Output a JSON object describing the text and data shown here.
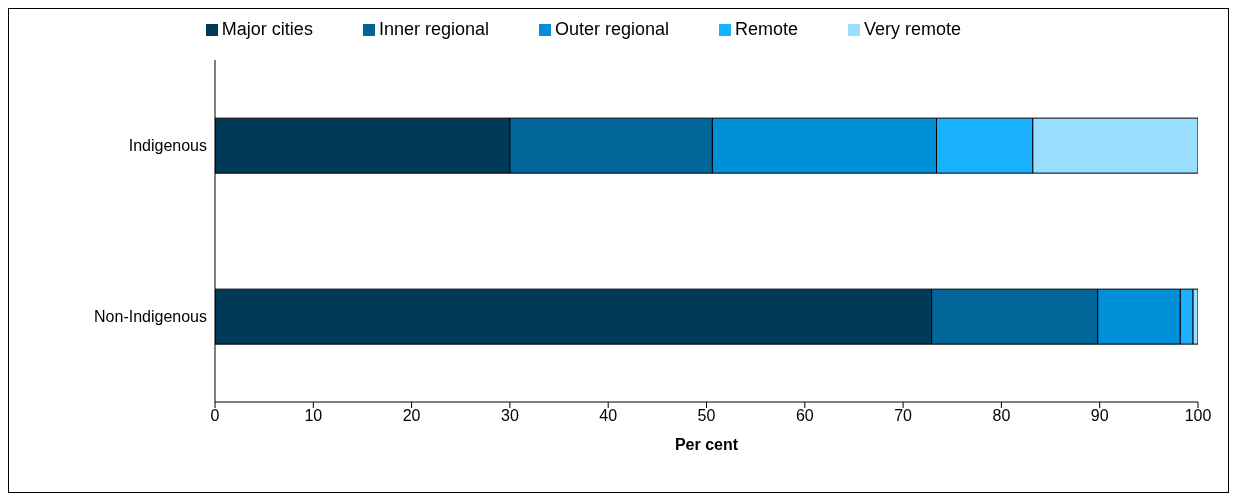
{
  "chart_data": {
    "type": "bar",
    "orientation": "horizontal",
    "stacked": true,
    "xlabel": "Per cent",
    "categories": [
      "Indigenous",
      "Non-Indigenous"
    ],
    "series": [
      {
        "name": "Major cities",
        "color": "#003a57",
        "values": [
          30.0,
          72.9
        ]
      },
      {
        "name": "Inner regional",
        "color": "#006699",
        "values": [
          20.6,
          16.9
        ]
      },
      {
        "name": "Outer regional",
        "color": "#008fd9",
        "values": [
          22.8,
          8.4
        ]
      },
      {
        "name": "Remote",
        "color": "#1ab2ff",
        "values": [
          9.8,
          1.3
        ]
      },
      {
        "name": "Very remote",
        "color": "#99ddff",
        "values": [
          16.8,
          0.5
        ]
      }
    ],
    "xlim": [
      0,
      100
    ],
    "xticks": [
      0,
      10,
      20,
      30,
      40,
      50,
      60,
      70,
      80,
      90,
      100
    ],
    "grid": false,
    "legend": "top"
  }
}
